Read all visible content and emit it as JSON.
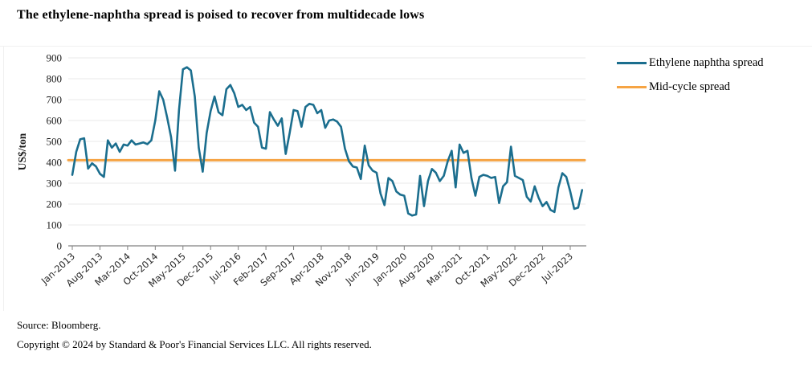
{
  "title": "The ethylene-naphtha spread is poised to recover from multidecade lows",
  "footer": {
    "source": "Source: Bloomberg.",
    "copyright": "Copyright © 2024 by Standard & Poor's Financial Services LLC. All rights reserved."
  },
  "colors": {
    "ethylene_line": "#1B6E8E",
    "mid_cycle_line": "#F6A444",
    "gridline": "#e8e8e8",
    "axis": "#808080",
    "text": "#1a1a1a"
  },
  "chart_data": {
    "type": "line",
    "title": "The ethylene-naphtha spread is poised to recover from multidecade lows",
    "xlabel": "",
    "ylabel": "US$/ton",
    "ylim": [
      0,
      900
    ],
    "y_ticks": [
      0,
      100,
      200,
      300,
      400,
      500,
      600,
      700,
      800,
      900
    ],
    "grid": "horizontal",
    "legend_position": "right",
    "x_start": "Jan-2013",
    "x_freq": "monthly",
    "x_tick_labels": [
      "Jan-2013",
      "Aug-2013",
      "Mar-2014",
      "Oct-2014",
      "May-2015",
      "Dec-2015",
      "Jul-2016",
      "Feb-2017",
      "Sep-2017",
      "Apr-2018",
      "Nov-2018",
      "Jun-2019",
      "Jan-2020",
      "Aug-2020",
      "Mar-2021",
      "Oct-2021",
      "May-2022",
      "Dec-2022",
      "Jul-2023"
    ],
    "x_tick_interval_months": 7,
    "series": [
      {
        "name": "Ethylene naphtha spread",
        "color": "#1B6E8E",
        "values": [
          340,
          450,
          510,
          515,
          370,
          395,
          380,
          345,
          330,
          505,
          470,
          490,
          450,
          485,
          480,
          505,
          485,
          490,
          495,
          487,
          505,
          600,
          740,
          700,
          615,
          520,
          360,
          650,
          845,
          855,
          840,
          715,
          470,
          355,
          540,
          645,
          715,
          640,
          625,
          750,
          770,
          730,
          665,
          675,
          650,
          665,
          590,
          570,
          470,
          465,
          640,
          605,
          575,
          610,
          440,
          540,
          650,
          645,
          570,
          665,
          680,
          675,
          635,
          650,
          565,
          600,
          605,
          595,
          570,
          465,
          405,
          380,
          375,
          320,
          480,
          385,
          360,
          350,
          250,
          195,
          325,
          310,
          260,
          245,
          240,
          155,
          145,
          150,
          335,
          190,
          310,
          368,
          350,
          310,
          335,
          405,
          455,
          280,
          485,
          445,
          455,
          325,
          240,
          330,
          340,
          335,
          325,
          330,
          205,
          285,
          305,
          475,
          335,
          325,
          315,
          235,
          212,
          285,
          230,
          190,
          210,
          172,
          162,
          280,
          348,
          330,
          260,
          177,
          183,
          267
        ]
      },
      {
        "name": "Mid-cycle spread",
        "color": "#F6A444",
        "type": "constant",
        "value": 410
      }
    ]
  }
}
